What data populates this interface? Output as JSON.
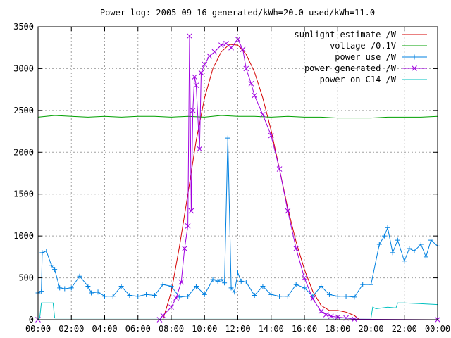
{
  "chart_data": {
    "type": "line",
    "title": "Power log: 2005-09-16 generated/kWh=20.0 used/kWh=11.0",
    "xlabel": "",
    "ylabel": "",
    "grid": true,
    "legend": "top-right",
    "xlim": [
      0,
      24
    ],
    "ylim": [
      0,
      3500
    ],
    "x_ticks": [
      {
        "v": 0,
        "label": "00:00"
      },
      {
        "v": 2,
        "label": "02:00"
      },
      {
        "v": 4,
        "label": "04:00"
      },
      {
        "v": 6,
        "label": "06:00"
      },
      {
        "v": 8,
        "label": "08:00"
      },
      {
        "v": 10,
        "label": "10:00"
      },
      {
        "v": 12,
        "label": "12:00"
      },
      {
        "v": 14,
        "label": "14:00"
      },
      {
        "v": 16,
        "label": "16:00"
      },
      {
        "v": 18,
        "label": "18:00"
      },
      {
        "v": 20,
        "label": "20:00"
      },
      {
        "v": 22,
        "label": "22:00"
      },
      {
        "v": 24,
        "label": "00:00"
      }
    ],
    "y_ticks": [
      {
        "v": 0,
        "label": "0"
      },
      {
        "v": 500,
        "label": "500"
      },
      {
        "v": 1000,
        "label": "1000"
      },
      {
        "v": 1500,
        "label": "1500"
      },
      {
        "v": 2000,
        "label": "2000"
      },
      {
        "v": 2500,
        "label": "2500"
      },
      {
        "v": 3000,
        "label": "3000"
      },
      {
        "v": 3500,
        "label": "3500"
      }
    ],
    "series": [
      {
        "name": "sunlight estimate /W",
        "color": "#d40000",
        "marker": "none",
        "x": [
          0,
          7.5,
          8,
          8.5,
          9,
          9.5,
          10,
          10.5,
          11,
          11.5,
          12,
          12.5,
          13,
          13.5,
          14,
          14.5,
          15,
          15.5,
          16,
          16.5,
          17,
          17.5,
          18,
          18.5,
          19,
          19.3,
          24
        ],
        "y": [
          0,
          0,
          330,
          880,
          1500,
          2140,
          2650,
          3000,
          3200,
          3290,
          3280,
          3170,
          2960,
          2650,
          2260,
          1800,
          1330,
          930,
          600,
          340,
          170,
          110,
          110,
          90,
          50,
          0,
          0
        ]
      },
      {
        "name": "voltage /0.1V",
        "color": "#00a000",
        "marker": "none",
        "x": [
          0,
          1,
          2,
          3,
          4,
          5,
          6,
          7,
          8,
          9,
          10,
          11,
          12,
          13,
          14,
          15,
          16,
          17,
          18,
          19,
          20,
          21,
          22,
          23,
          24
        ],
        "y": [
          2420,
          2440,
          2430,
          2420,
          2430,
          2420,
          2430,
          2430,
          2420,
          2430,
          2420,
          2440,
          2430,
          2430,
          2420,
          2430,
          2420,
          2420,
          2410,
          2410,
          2410,
          2420,
          2420,
          2420,
          2430
        ]
      },
      {
        "name": "power use /W",
        "color": "#0080e0",
        "marker": "plus",
        "x": [
          0,
          0.2,
          0.25,
          0.5,
          0.8,
          1,
          1.3,
          1.6,
          2,
          2.5,
          3,
          3.2,
          3.6,
          4,
          4.5,
          5,
          5.5,
          6,
          6.5,
          7,
          7.5,
          8,
          8.5,
          9,
          9.5,
          10,
          10.5,
          10.8,
          11,
          11.2,
          11.4,
          11.6,
          11.8,
          12,
          12.2,
          12.5,
          13,
          13.5,
          14,
          14.5,
          15,
          15.5,
          16,
          16.5,
          17,
          17.5,
          18,
          18.5,
          19,
          19.5,
          20,
          20.5,
          20.8,
          21,
          21.3,
          21.6,
          22,
          22.3,
          22.6,
          23,
          23.3,
          23.6,
          24
        ],
        "y": [
          320,
          340,
          800,
          820,
          650,
          600,
          380,
          370,
          380,
          520,
          400,
          320,
          330,
          280,
          280,
          400,
          290,
          280,
          300,
          290,
          420,
          400,
          270,
          280,
          400,
          300,
          480,
          460,
          480,
          440,
          2170,
          380,
          330,
          560,
          460,
          450,
          290,
          400,
          300,
          280,
          280,
          420,
          380,
          280,
          400,
          300,
          280,
          280,
          270,
          420,
          420,
          900,
          1000,
          1100,
          800,
          950,
          700,
          850,
          820,
          900,
          750,
          950,
          880
        ]
      },
      {
        "name": "power generated /W",
        "color": "#a000e0",
        "marker": "cross",
        "x": [
          0,
          7.3,
          7.5,
          8,
          8.3,
          8.6,
          8.8,
          9,
          9.1,
          9.2,
          9.3,
          9.4,
          9.5,
          9.7,
          9.8,
          10,
          10.3,
          10.6,
          11,
          11.3,
          11.6,
          12,
          12.3,
          12.5,
          12.8,
          13,
          13.5,
          14,
          14.5,
          15,
          15.5,
          16,
          16.5,
          17,
          17.3,
          17.6,
          18,
          18.5,
          19,
          24
        ],
        "y": [
          0,
          0,
          50,
          150,
          260,
          450,
          850,
          1120,
          3390,
          1300,
          2500,
          2900,
          2800,
          2040,
          2950,
          3050,
          3150,
          3200,
          3280,
          3300,
          3250,
          3350,
          3230,
          3000,
          2820,
          2680,
          2450,
          2200,
          1800,
          1300,
          850,
          500,
          250,
          100,
          60,
          40,
          30,
          20,
          5,
          0
        ]
      },
      {
        "name": "power on C14 /W",
        "color": "#00c0c0",
        "marker": "none",
        "x": [
          0,
          0.1,
          0.2,
          0.9,
          1,
          1.5,
          19.5,
          20,
          20.1,
          20.3,
          21,
          21.5,
          21.6,
          22,
          23,
          24
        ],
        "y": [
          0,
          20,
          200,
          200,
          20,
          20,
          20,
          20,
          150,
          130,
          150,
          140,
          200,
          200,
          190,
          180
        ]
      }
    ]
  }
}
